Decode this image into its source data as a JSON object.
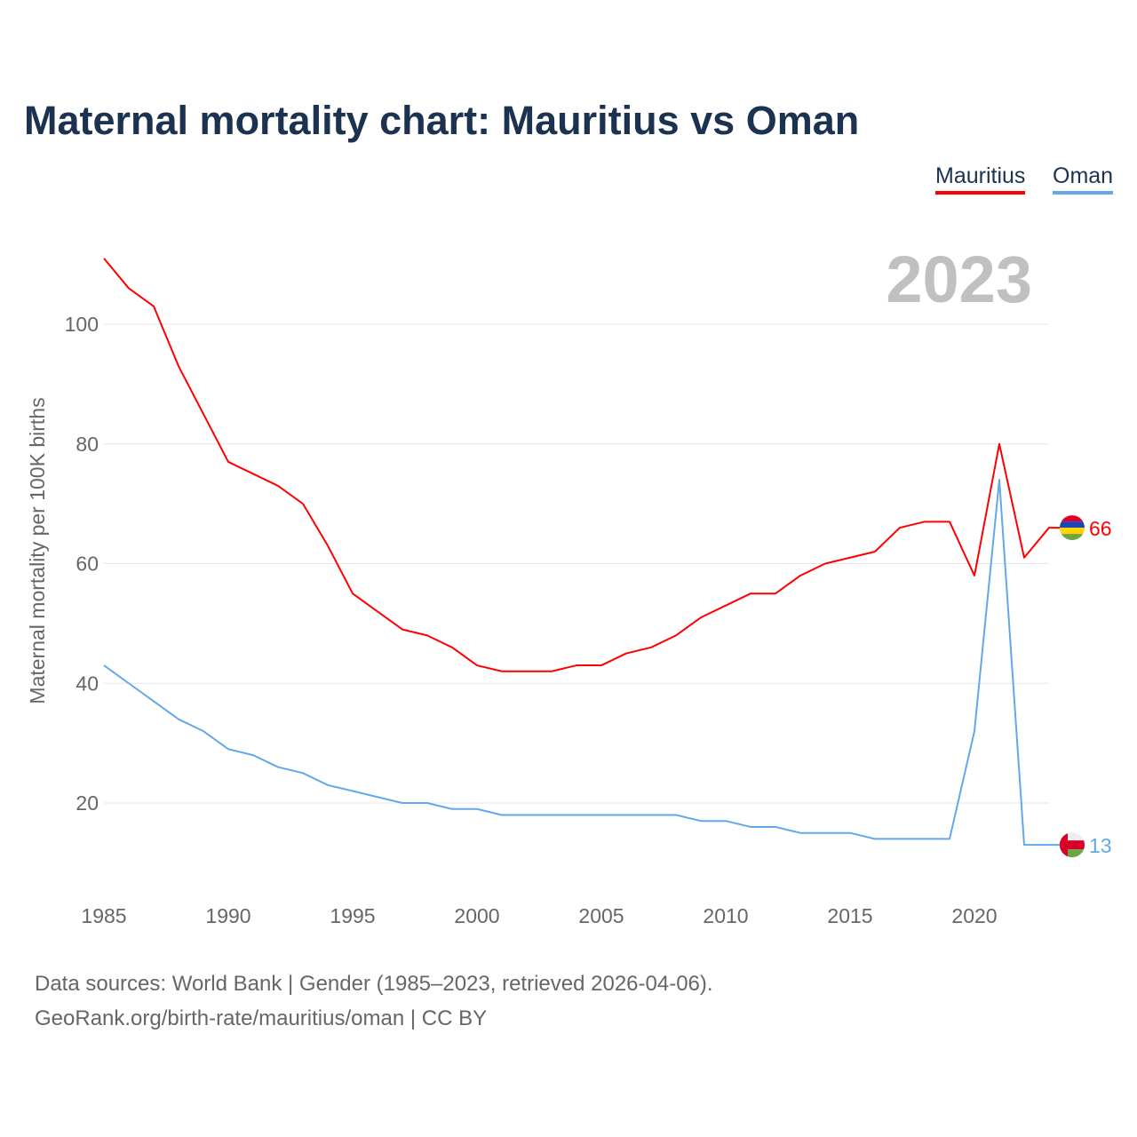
{
  "chart_data": {
    "type": "line",
    "title": "Maternal mortality chart: Mauritius vs Oman",
    "ylabel": "Maternal mortality per 100K births",
    "xlabel": "",
    "year_label": "2023",
    "x": [
      1985,
      1986,
      1987,
      1988,
      1989,
      1990,
      1991,
      1992,
      1993,
      1994,
      1995,
      1996,
      1997,
      1998,
      1999,
      2000,
      2001,
      2002,
      2003,
      2004,
      2005,
      2006,
      2007,
      2008,
      2009,
      2010,
      2011,
      2012,
      2013,
      2014,
      2015,
      2016,
      2017,
      2018,
      2019,
      2020,
      2021,
      2022,
      2023
    ],
    "series": [
      {
        "name": "Mauritius",
        "color": "#ff0000",
        "end_label": "66",
        "values": [
          111,
          106,
          103,
          93,
          85,
          77,
          75,
          73,
          70,
          63,
          55,
          52,
          49,
          48,
          46,
          43,
          42,
          42,
          42,
          43,
          43,
          45,
          46,
          48,
          51,
          53,
          55,
          55,
          58,
          60,
          61,
          62,
          66,
          67,
          67,
          58,
          80,
          61,
          66
        ]
      },
      {
        "name": "Oman",
        "color": "#62a8ea",
        "end_label": "13",
        "values": [
          43,
          40,
          37,
          34,
          32,
          29,
          28,
          26,
          25,
          23,
          22,
          21,
          20,
          20,
          19,
          19,
          18,
          18,
          18,
          18,
          18,
          18,
          18,
          18,
          17,
          17,
          16,
          16,
          15,
          15,
          15,
          14,
          14,
          14,
          14,
          32,
          74,
          13,
          13
        ]
      }
    ],
    "xticks": [
      "1985",
      "1990",
      "1995",
      "2000",
      "2005",
      "2010",
      "2015",
      "2020"
    ],
    "yticks": [
      "20",
      "40",
      "60",
      "80",
      "100"
    ],
    "xlim": [
      1985,
      2023
    ],
    "ylim": [
      0,
      120
    ],
    "grid": true,
    "legend_placement": "top-right"
  },
  "source_line1": "Data sources: World Bank | Gender (1985–2023, retrieved 2026-04-06).",
  "source_line2": "GeoRank.org/birth-rate/mauritius/oman | CC BY"
}
